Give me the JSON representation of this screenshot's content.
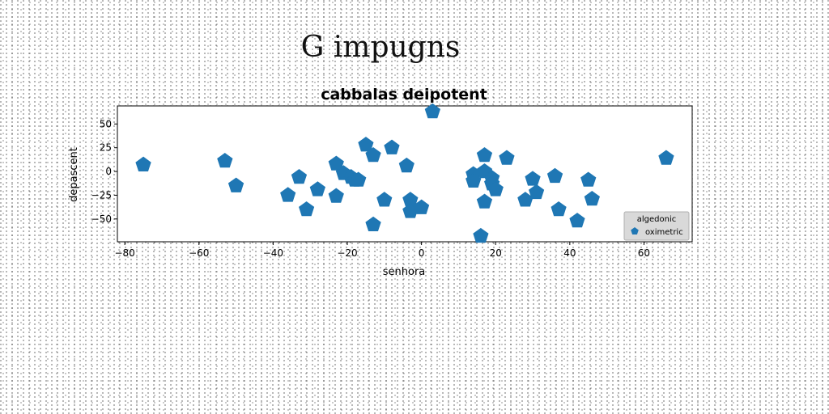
{
  "page": {
    "suptitle": "G impugns"
  },
  "chart_data": {
    "type": "scatter",
    "title": "cabbalas deipotent",
    "xlabel": "senhora",
    "ylabel": "depascent",
    "xlim": [
      -82,
      73
    ],
    "ylim": [
      -74,
      69
    ],
    "xticks": [
      -80,
      -60,
      -40,
      -20,
      0,
      20,
      40,
      60
    ],
    "yticks": [
      -50,
      -25,
      0,
      25,
      50
    ],
    "grid": false,
    "marker": "pentagon",
    "legend": {
      "title": "algedonic",
      "placement": "lower-right"
    },
    "series": [
      {
        "name": "oximetric",
        "color": "#1f77b4",
        "points": [
          [
            -75,
            7
          ],
          [
            -53,
            11
          ],
          [
            -50,
            -15
          ],
          [
            -36,
            -25
          ],
          [
            -33,
            -6
          ],
          [
            -31,
            -40
          ],
          [
            -28,
            -19
          ],
          [
            -23,
            8
          ],
          [
            -23,
            -26
          ],
          [
            -21,
            -2
          ],
          [
            -19,
            -6
          ],
          [
            -18,
            -9
          ],
          [
            -17,
            -9
          ],
          [
            -15,
            28
          ],
          [
            -13,
            17
          ],
          [
            -13,
            -56
          ],
          [
            -10,
            -30
          ],
          [
            -8,
            25
          ],
          [
            -4,
            6
          ],
          [
            -3,
            -30
          ],
          [
            -3,
            -42
          ],
          [
            0,
            -38
          ],
          [
            3,
            63
          ],
          [
            14,
            -3
          ],
          [
            14,
            -10
          ],
          [
            16,
            -68
          ],
          [
            17,
            -32
          ],
          [
            17,
            0
          ],
          [
            17,
            17
          ],
          [
            19,
            -7
          ],
          [
            19,
            -13
          ],
          [
            20,
            -19
          ],
          [
            23,
            14
          ],
          [
            28,
            -30
          ],
          [
            30,
            -8
          ],
          [
            31,
            -22
          ],
          [
            36,
            -5
          ],
          [
            37,
            -40
          ],
          [
            42,
            -52
          ],
          [
            45,
            -9
          ],
          [
            46,
            -29
          ],
          [
            66,
            14
          ]
        ]
      }
    ]
  }
}
